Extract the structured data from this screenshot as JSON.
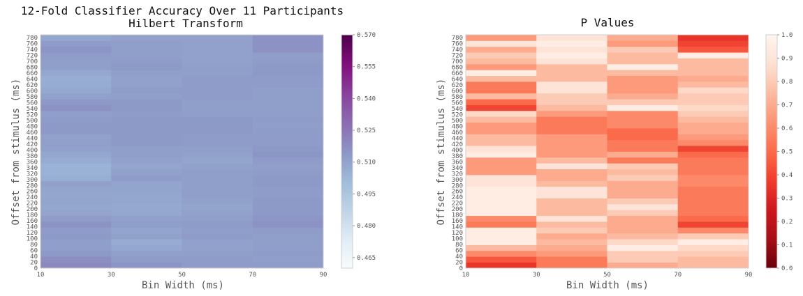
{
  "chart_data": [
    {
      "type": "heatmap",
      "title": "12-Fold Classifier Accuracy Over 11 Participants",
      "subtitle": "Hilbert Transform",
      "xlabel": "Bin Width (ms)",
      "ylabel": "Offset from stimulus (ms)",
      "x_ticks": [
        "10",
        "30",
        "50",
        "70",
        "90"
      ],
      "y_ticks": [
        "0",
        "20",
        "40",
        "60",
        "80",
        "100",
        "120",
        "140",
        "160",
        "180",
        "200",
        "220",
        "240",
        "260",
        "280",
        "300",
        "320",
        "340",
        "360",
        "380",
        "400",
        "420",
        "440",
        "460",
        "480",
        "500",
        "520",
        "540",
        "560",
        "580",
        "600",
        "620",
        "640",
        "660",
        "680",
        "700",
        "720",
        "740",
        "760",
        "780"
      ],
      "x_range": [
        10,
        90
      ],
      "y_range": [
        0,
        790
      ],
      "colorbar": {
        "colormap": "BuPu",
        "range": [
          0.46,
          0.57
        ],
        "ticks": [
          "0.465",
          "0.480",
          "0.495",
          "0.510",
          "0.525",
          "0.540",
          "0.555",
          "0.570"
        ]
      },
      "columns": [
        "10",
        "30",
        "50",
        "70"
      ],
      "values": [
        [
          0.519,
          0.515,
          0.513,
          0.513
        ],
        [
          0.518,
          0.513,
          0.513,
          0.512
        ],
        [
          0.514,
          0.512,
          0.512,
          0.513
        ],
        [
          0.512,
          0.509,
          0.511,
          0.512
        ],
        [
          0.512,
          0.507,
          0.511,
          0.512
        ],
        [
          0.514,
          0.511,
          0.513,
          0.512
        ],
        [
          0.513,
          0.51,
          0.512,
          0.513
        ],
        [
          0.516,
          0.512,
          0.513,
          0.516
        ],
        [
          0.513,
          0.511,
          0.512,
          0.515
        ],
        [
          0.51,
          0.509,
          0.511,
          0.514
        ],
        [
          0.509,
          0.508,
          0.51,
          0.514
        ],
        [
          0.51,
          0.509,
          0.511,
          0.514
        ],
        [
          0.509,
          0.509,
          0.512,
          0.513
        ],
        [
          0.51,
          0.51,
          0.512,
          0.513
        ],
        [
          0.511,
          0.51,
          0.512,
          0.514
        ],
        [
          0.506,
          0.513,
          0.512,
          0.514
        ],
        [
          0.505,
          0.511,
          0.512,
          0.513
        ],
        [
          0.505,
          0.51,
          0.511,
          0.512
        ],
        [
          0.507,
          0.511,
          0.51,
          0.513
        ],
        [
          0.509,
          0.512,
          0.511,
          0.515
        ],
        [
          0.511,
          0.512,
          0.512,
          0.514
        ],
        [
          0.512,
          0.514,
          0.513,
          0.513
        ],
        [
          0.511,
          0.514,
          0.513,
          0.513
        ],
        [
          0.514,
          0.514,
          0.514,
          0.513
        ],
        [
          0.514,
          0.514,
          0.514,
          0.512
        ],
        [
          0.513,
          0.514,
          0.514,
          0.513
        ],
        [
          0.512,
          0.513,
          0.512,
          0.512
        ],
        [
          0.516,
          0.514,
          0.512,
          0.512
        ],
        [
          0.514,
          0.514,
          0.512,
          0.512
        ],
        [
          0.511,
          0.512,
          0.513,
          0.512
        ],
        [
          0.508,
          0.513,
          0.513,
          0.512
        ],
        [
          0.507,
          0.511,
          0.513,
          0.513
        ],
        [
          0.506,
          0.511,
          0.513,
          0.513
        ],
        [
          0.509,
          0.512,
          0.512,
          0.514
        ],
        [
          0.512,
          0.514,
          0.512,
          0.514
        ],
        [
          0.512,
          0.513,
          0.511,
          0.513
        ],
        [
          0.513,
          0.512,
          0.511,
          0.512
        ],
        [
          0.515,
          0.512,
          0.511,
          0.516
        ],
        [
          0.513,
          0.512,
          0.511,
          0.516
        ],
        [
          0.509,
          0.511,
          0.511,
          0.516
        ]
      ]
    },
    {
      "type": "heatmap",
      "title": "P Values",
      "xlabel": "Bin Width (ms)",
      "ylabel": "Offset from stimulus (ms)",
      "x_ticks": [
        "10",
        "30",
        "50",
        "70",
        "90"
      ],
      "y_ticks": [
        "0",
        "20",
        "40",
        "60",
        "80",
        "100",
        "120",
        "140",
        "160",
        "180",
        "200",
        "220",
        "240",
        "260",
        "280",
        "300",
        "320",
        "340",
        "360",
        "380",
        "400",
        "420",
        "440",
        "460",
        "480",
        "500",
        "520",
        "540",
        "560",
        "580",
        "600",
        "620",
        "640",
        "660",
        "680",
        "700",
        "720",
        "740",
        "760",
        "780"
      ],
      "x_range": [
        10,
        90
      ],
      "y_range": [
        0,
        790
      ],
      "colorbar": {
        "colormap": "Reds_r",
        "range": [
          0.0,
          1.0
        ],
        "ticks": [
          "0.0",
          "0.1",
          "0.2",
          "0.3",
          "0.4",
          "0.5",
          "0.6",
          "0.7",
          "0.8",
          "0.9",
          "1.0"
        ]
      },
      "columns": [
        "10",
        "30",
        "50",
        "70"
      ],
      "values": [
        [
          0.35,
          0.55,
          0.7,
          0.75
        ],
        [
          0.45,
          0.55,
          0.8,
          0.75
        ],
        [
          0.6,
          0.65,
          0.8,
          0.8
        ],
        [
          0.75,
          0.7,
          0.95,
          0.85
        ],
        [
          0.95,
          0.75,
          0.85,
          0.95
        ],
        [
          0.95,
          0.7,
          0.75,
          0.8
        ],
        [
          0.95,
          0.8,
          0.7,
          0.6
        ],
        [
          0.55,
          0.75,
          0.7,
          0.4
        ],
        [
          0.6,
          0.9,
          0.7,
          0.5
        ],
        [
          0.95,
          0.75,
          0.8,
          0.55
        ],
        [
          0.95,
          0.75,
          0.9,
          0.55
        ],
        [
          0.95,
          0.75,
          0.8,
          0.55
        ],
        [
          0.95,
          0.9,
          0.7,
          0.55
        ],
        [
          0.95,
          0.9,
          0.7,
          0.55
        ],
        [
          0.9,
          0.75,
          0.7,
          0.6
        ],
        [
          0.9,
          0.7,
          0.8,
          0.6
        ],
        [
          0.65,
          0.7,
          0.75,
          0.55
        ],
        [
          0.65,
          0.9,
          0.8,
          0.55
        ],
        [
          0.65,
          0.75,
          0.55,
          0.55
        ],
        [
          0.95,
          0.65,
          0.7,
          0.5
        ],
        [
          0.9,
          0.65,
          0.55,
          0.4
        ],
        [
          0.75,
          0.65,
          0.55,
          0.6
        ],
        [
          0.75,
          0.65,
          0.5,
          0.65
        ],
        [
          0.65,
          0.55,
          0.5,
          0.7
        ],
        [
          0.65,
          0.55,
          0.6,
          0.7
        ],
        [
          0.75,
          0.55,
          0.6,
          0.75
        ],
        [
          0.85,
          0.65,
          0.6,
          0.8
        ],
        [
          0.4,
          0.75,
          0.95,
          0.85
        ],
        [
          0.5,
          0.8,
          0.8,
          0.8
        ],
        [
          0.75,
          0.8,
          0.7,
          0.8
        ],
        [
          0.55,
          0.9,
          0.65,
          0.85
        ],
        [
          0.55,
          0.9,
          0.65,
          0.75
        ],
        [
          0.75,
          0.75,
          0.65,
          0.7
        ],
        [
          0.95,
          0.75,
          0.75,
          0.75
        ],
        [
          0.65,
          0.75,
          0.95,
          0.75
        ],
        [
          0.75,
          0.9,
          0.75,
          0.75
        ],
        [
          0.8,
          0.95,
          0.75,
          0.95
        ],
        [
          0.7,
          0.9,
          0.8,
          0.45
        ],
        [
          0.9,
          0.95,
          0.65,
          0.4
        ],
        [
          0.65,
          0.9,
          0.7,
          0.35
        ]
      ]
    }
  ]
}
